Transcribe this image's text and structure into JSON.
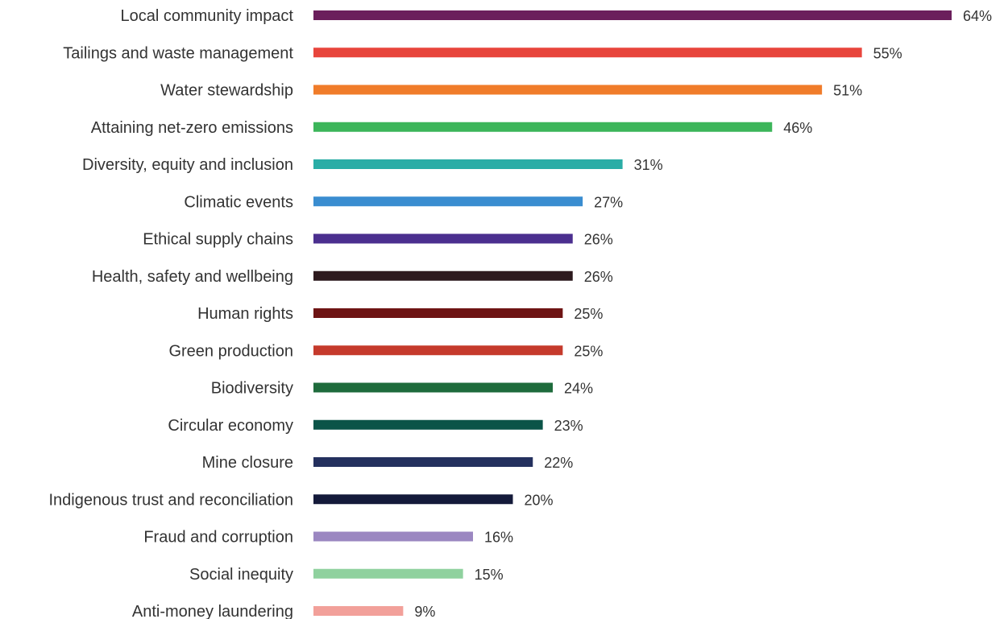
{
  "chart_data": {
    "type": "bar",
    "orientation": "horizontal",
    "categories": [
      "Local community impact",
      "Tailings and waste management",
      "Water stewardship",
      "Attaining net-zero emissions",
      "Diversity, equity and inclusion",
      "Climatic events",
      "Ethical supply chains",
      "Health, safety and wellbeing",
      "Human rights",
      "Green production",
      "Biodiversity",
      "Circular economy",
      "Mine closure",
      "Indigenous trust and reconciliation",
      "Fraud and corruption",
      "Social inequity",
      "Anti-money laundering"
    ],
    "values": [
      64,
      55,
      51,
      46,
      31,
      27,
      26,
      26,
      25,
      25,
      24,
      23,
      22,
      20,
      16,
      15,
      9
    ],
    "value_labels": [
      "64%",
      "55%",
      "51%",
      "46%",
      "31%",
      "27%",
      "26%",
      "26%",
      "25%",
      "25%",
      "24%",
      "23%",
      "22%",
      "20%",
      "16%",
      "15%",
      "9%"
    ],
    "colors": [
      "#6b1f5c",
      "#e8453c",
      "#f07c2a",
      "#3cb55a",
      "#2aada6",
      "#3a8dd0",
      "#4b2f8f",
      "#2d1a1e",
      "#6e1414",
      "#c53a2c",
      "#1e6b3c",
      "#0b5448",
      "#24305e",
      "#141a3a",
      "#9b87c1",
      "#8fd19e",
      "#f2a09a"
    ],
    "title": "",
    "xlabel": "",
    "ylabel": "",
    "xlim": [
      0,
      64
    ],
    "grid": false,
    "legend": "none"
  }
}
